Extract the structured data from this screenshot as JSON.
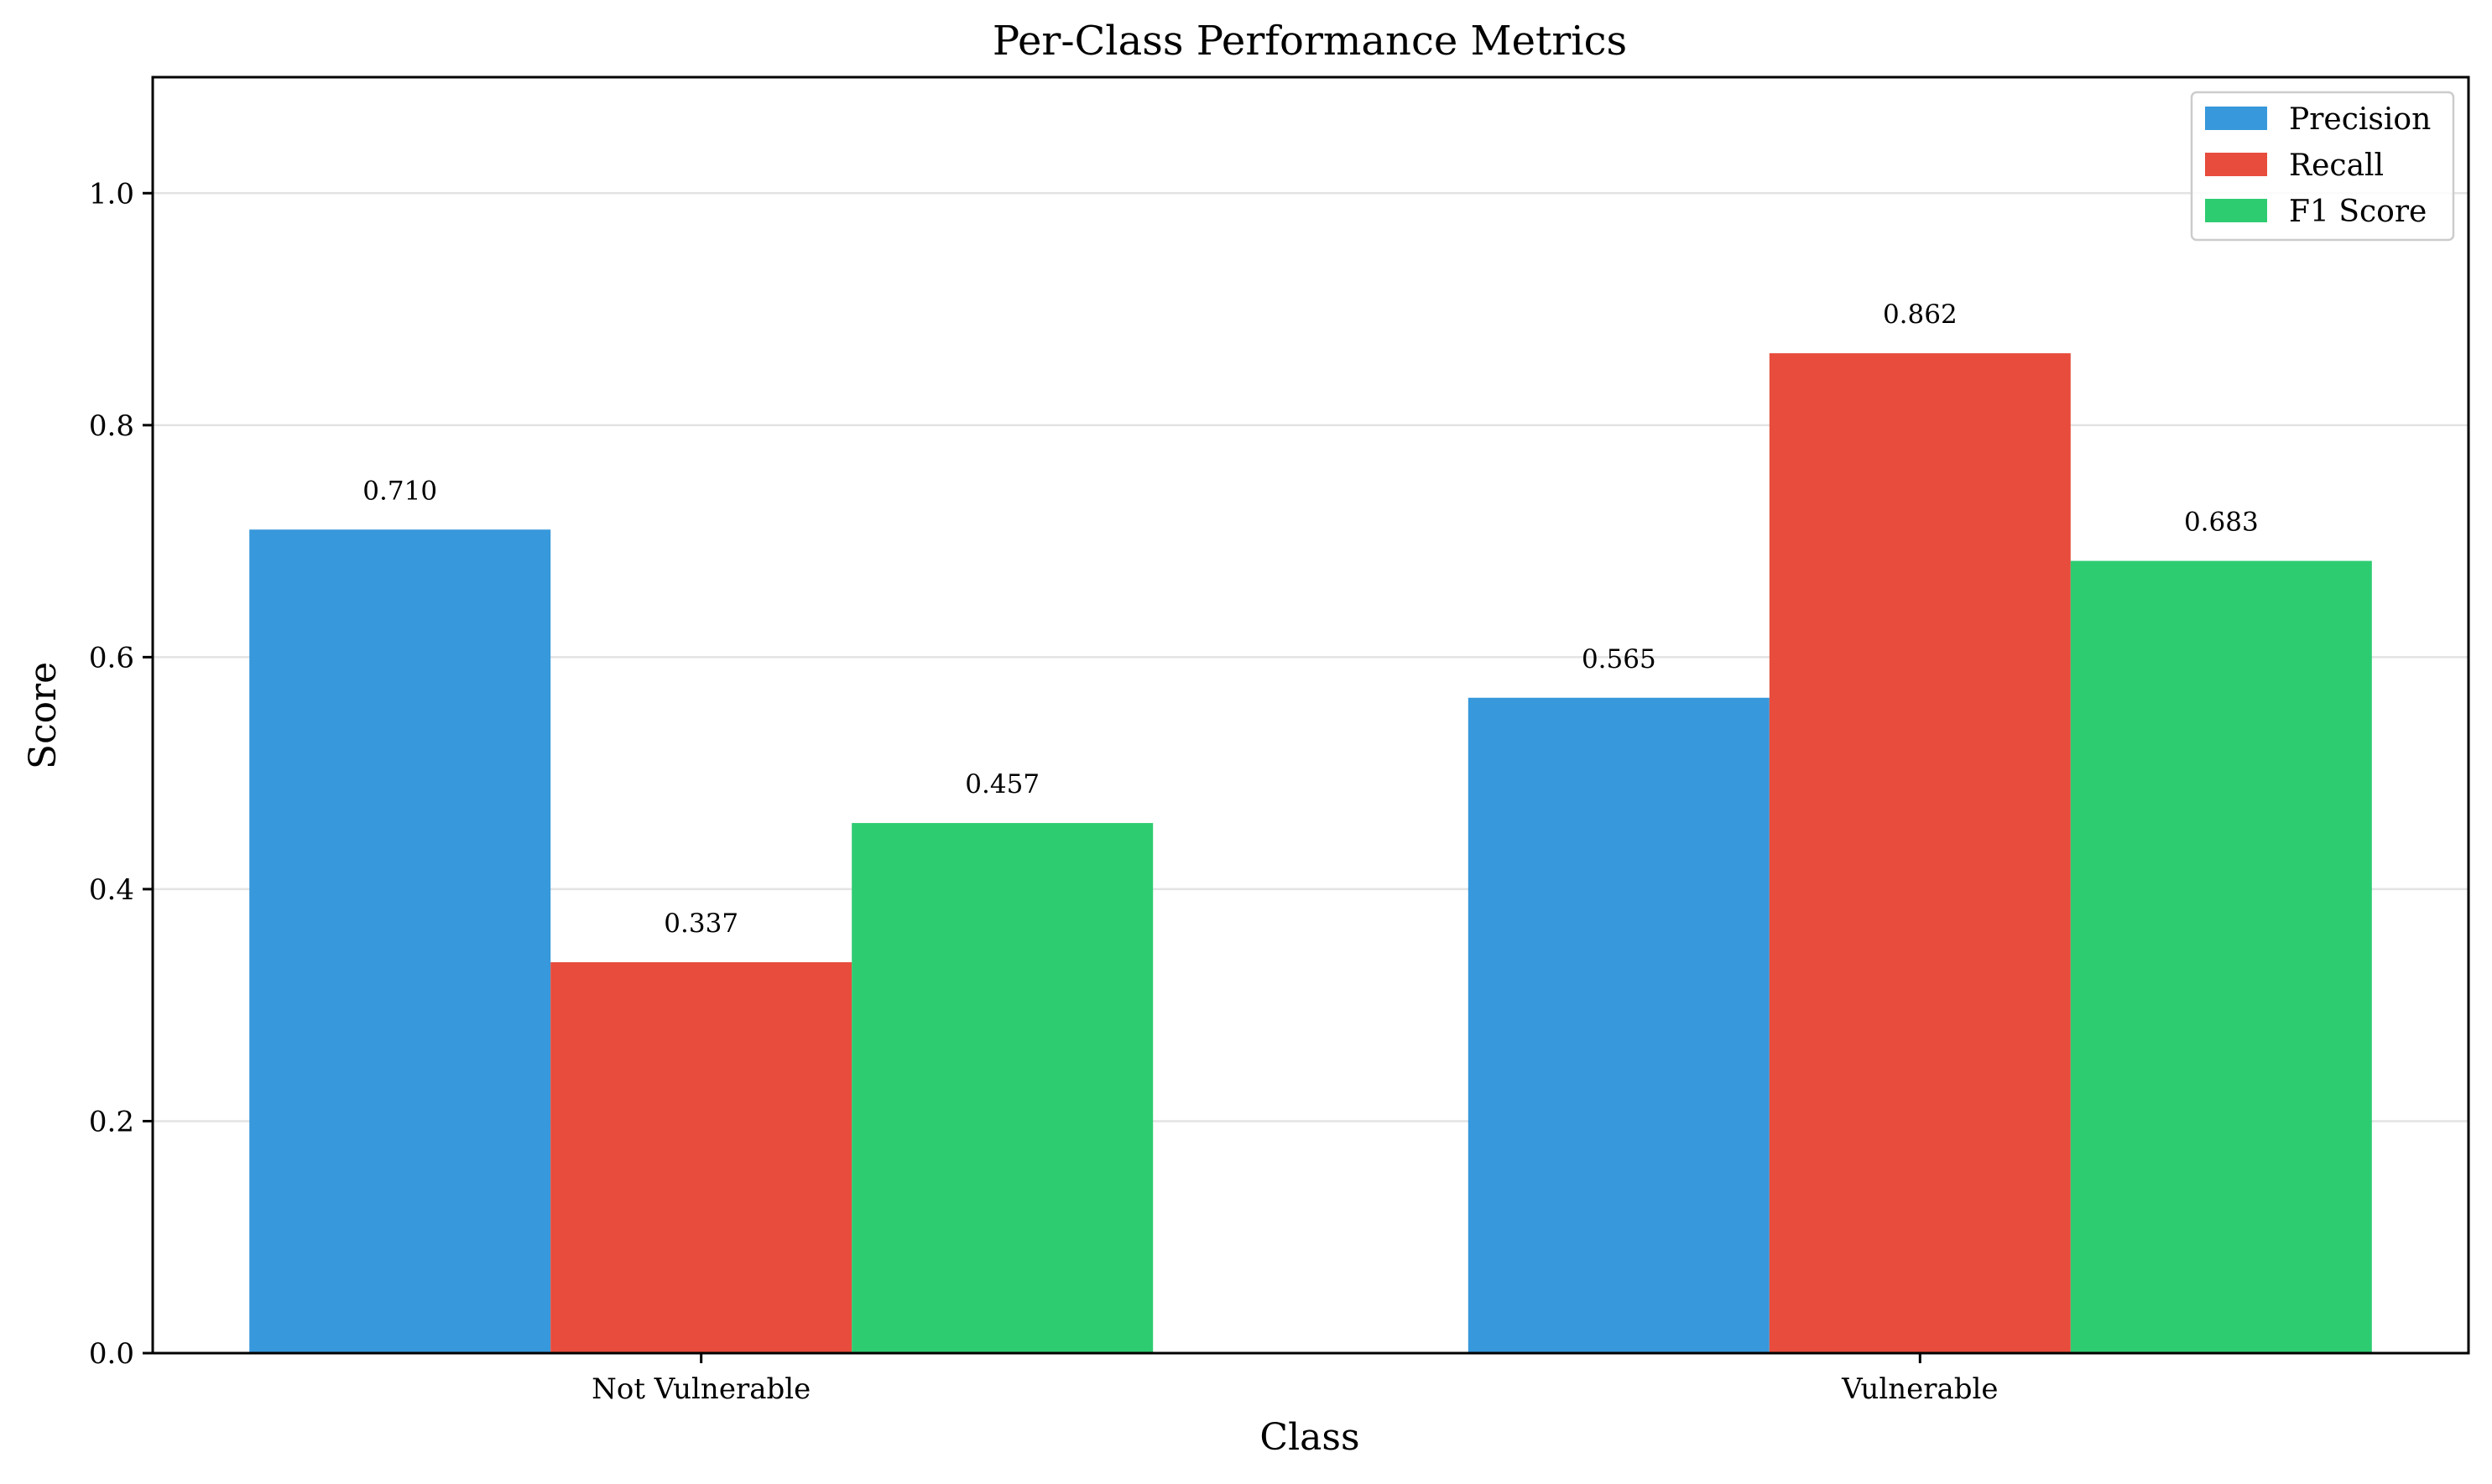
{
  "chart_data": {
    "type": "bar",
    "title": "Per-Class Performance Metrics",
    "xlabel": "Class",
    "ylabel": "Score",
    "categories": [
      "Not Vulnerable",
      "Vulnerable"
    ],
    "series": [
      {
        "name": "Precision",
        "values": [
          0.71,
          0.565
        ],
        "labels": [
          "0.710",
          "0.565"
        ],
        "color": "#3798db"
      },
      {
        "name": "Recall",
        "values": [
          0.337,
          0.862
        ],
        "labels": [
          "0.337",
          "0.862"
        ],
        "color": "#e74c3c"
      },
      {
        "name": "F1 Score",
        "values": [
          0.457,
          0.683
        ],
        "labels": [
          "0.457",
          "0.683"
        ],
        "color": "#2ecc71"
      }
    ],
    "ylim": [
      0,
      1.1
    ],
    "yticks": [
      "0.0",
      "0.2",
      "0.4",
      "0.6",
      "0.8",
      "1.0"
    ],
    "grid": "y",
    "legend_position": "top-right"
  }
}
